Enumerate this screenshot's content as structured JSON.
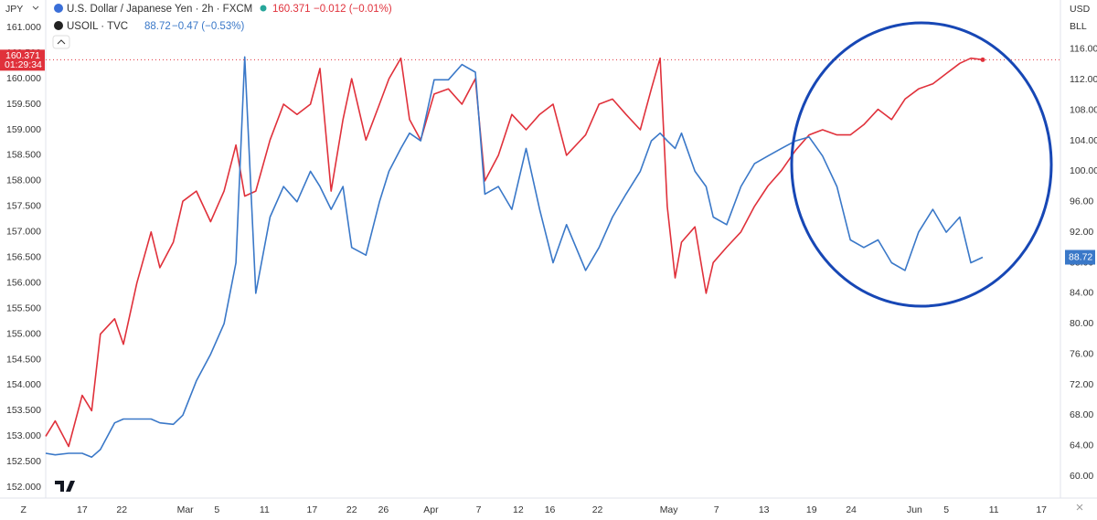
{
  "header": {
    "left_unit": "JPY",
    "right_unit_1": "USD",
    "right_unit_2": "BLL",
    "legend_1": {
      "name": "U.S. Dollar / Japanese Yen · 2h · FXCM",
      "price": "160.371",
      "change": "−0.012 (−0.01%)"
    },
    "legend_2": {
      "name": "USOIL · TVC",
      "price": "88.72",
      "change": "−0.47 (−0.53%)"
    },
    "price_box_1": {
      "price": "160.371",
      "countdown": "01:29:34"
    },
    "price_box_2": {
      "price": "88.72"
    }
  },
  "chart_data": {
    "type": "line",
    "grid": false,
    "x": [
      12.4,
      13.6,
      15.3,
      17.0,
      18.2,
      19.3,
      21.1,
      22.2,
      23.9,
      25.7,
      26.8,
      28.5,
      29.7,
      31.4,
      33.2,
      34.9,
      36.4,
      37.5,
      38.9,
      40.7,
      42.4,
      44.1,
      45.8,
      47.0,
      48.4,
      49.9,
      51.0,
      52.8,
      54.5,
      55.7,
      57.2,
      58.3,
      59.7,
      61.4,
      63.2,
      64.9,
      66.6,
      67.8,
      69.5,
      71.2,
      73.0,
      74.7,
      76.4,
      78.1,
      80.5,
      82.2,
      83.9,
      85.6,
      87.4,
      88.8,
      89.9,
      90.8,
      91.8,
      92.6,
      94.3,
      95.7,
      96.6,
      98.3,
      100.1,
      101.8,
      103.5,
      105.2,
      107.0,
      108.7,
      110.4,
      112.2,
      113.9,
      115.6,
      117.4,
      119.1,
      120.8,
      122.5,
      124.3,
      126.0,
      127.7,
      129.1,
      130.6
    ],
    "xlim": [
      12.4,
      140.4
    ],
    "xticks": [
      {
        "value": 9.6,
        "label": "Z"
      },
      {
        "value": 17,
        "label": "17"
      },
      {
        "value": 22,
        "label": "22"
      },
      {
        "value": 30,
        "label": "Mar"
      },
      {
        "value": 34,
        "label": "5"
      },
      {
        "value": 40,
        "label": "11"
      },
      {
        "value": 46,
        "label": "17"
      },
      {
        "value": 51,
        "label": "22"
      },
      {
        "value": 55,
        "label": "26"
      },
      {
        "value": 61,
        "label": "Apr"
      },
      {
        "value": 67,
        "label": "7"
      },
      {
        "value": 72,
        "label": "12"
      },
      {
        "value": 76,
        "label": "16"
      },
      {
        "value": 82,
        "label": "22"
      },
      {
        "value": 91,
        "label": "May"
      },
      {
        "value": 97,
        "label": "7"
      },
      {
        "value": 103,
        "label": "13"
      },
      {
        "value": 109,
        "label": "19"
      },
      {
        "value": 114,
        "label": "24"
      },
      {
        "value": 122,
        "label": "Jun"
      },
      {
        "value": 126,
        "label": "5"
      },
      {
        "value": 132,
        "label": "11"
      },
      {
        "value": 138,
        "label": "17"
      }
    ],
    "ylim": [
      151.79,
      161.54
    ],
    "yticks": [
      {
        "value": 152,
        "label": "152.000"
      },
      {
        "value": 152.5,
        "label": "152.500"
      },
      {
        "value": 153,
        "label": "153.000"
      },
      {
        "value": 153.5,
        "label": "153.500"
      },
      {
        "value": 154,
        "label": "154.000"
      },
      {
        "value": 154.5,
        "label": "154.500"
      },
      {
        "value": 155,
        "label": "155.000"
      },
      {
        "value": 155.5,
        "label": "155.500"
      },
      {
        "value": 156,
        "label": "156.000"
      },
      {
        "value": 156.5,
        "label": "156.500"
      },
      {
        "value": 157,
        "label": "157.000"
      },
      {
        "value": 157.5,
        "label": "157.500"
      },
      {
        "value": 158,
        "label": "158.000"
      },
      {
        "value": 158.5,
        "label": "158.500"
      },
      {
        "value": 159,
        "label": "159.000"
      },
      {
        "value": 159.5,
        "label": "159.500"
      },
      {
        "value": 160,
        "label": "160.000"
      },
      {
        "value": 160.5,
        "label": "160.500"
      },
      {
        "value": 161,
        "label": "161.000"
      }
    ],
    "y2lim": [
      57.13,
      122.47
    ],
    "y2ticks": [
      {
        "value": 60,
        "label": "60.00"
      },
      {
        "value": 64,
        "label": "64.00"
      },
      {
        "value": 68,
        "label": "68.00"
      },
      {
        "value": 72,
        "label": "72.00"
      },
      {
        "value": 76,
        "label": "76.00"
      },
      {
        "value": 80,
        "label": "80.00"
      },
      {
        "value": 84,
        "label": "84.00"
      },
      {
        "value": 88,
        "label": "88.00"
      },
      {
        "value": 92,
        "label": "92.00"
      },
      {
        "value": 96,
        "label": "96.00"
      },
      {
        "value": 100,
        "label": "100.00"
      },
      {
        "value": 104,
        "label": "104.00"
      },
      {
        "value": 108,
        "label": "108.00"
      },
      {
        "value": 112,
        "label": "112.00"
      },
      {
        "value": 116,
        "label": "116.00"
      }
    ],
    "series": [
      {
        "name": "U.S. Dollar / Japanese Yen",
        "color": "#e0313b",
        "axis": "y",
        "values": [
          153.0,
          153.3,
          152.8,
          153.8,
          153.5,
          155.0,
          155.3,
          154.8,
          156.0,
          157.0,
          156.3,
          156.8,
          157.6,
          157.8,
          157.2,
          157.8,
          158.7,
          157.7,
          157.8,
          158.8,
          159.5,
          159.3,
          159.5,
          160.2,
          157.8,
          159.2,
          160.0,
          158.8,
          159.5,
          160.0,
          160.4,
          159.2,
          158.8,
          159.7,
          159.8,
          159.5,
          160.0,
          158.0,
          158.5,
          159.3,
          159.0,
          159.3,
          159.5,
          158.5,
          158.9,
          159.5,
          159.6,
          159.3,
          159.0,
          159.8,
          160.4,
          157.5,
          156.1,
          156.8,
          157.1,
          155.8,
          156.4,
          156.7,
          157.0,
          157.5,
          157.9,
          158.2,
          158.6,
          158.9,
          159.0,
          158.9,
          158.9,
          159.1,
          159.4,
          159.2,
          159.6,
          159.8,
          159.9,
          160.1,
          160.3,
          160.4,
          160.371
        ]
      },
      {
        "name": "USOIL",
        "color": "#3a78c8",
        "axis": "y2",
        "values": [
          63.0,
          62.8,
          63.0,
          63.0,
          62.5,
          63.5,
          67.0,
          67.5,
          67.5,
          67.5,
          67.0,
          66.8,
          68.0,
          72.5,
          76.0,
          80.0,
          88.0,
          115.0,
          84.0,
          94.0,
          98.0,
          96.0,
          100.0,
          98.0,
          95.0,
          98.0,
          90.0,
          89.0,
          96.0,
          100.0,
          103.0,
          105.0,
          104.0,
          112.0,
          112.0,
          114.0,
          113.0,
          97.0,
          98.0,
          95.0,
          103.0,
          95.0,
          88.0,
          93.0,
          87.0,
          90.0,
          94.0,
          97.0,
          100.0,
          104.0,
          105.0,
          104.0,
          103.0,
          105.0,
          100.0,
          98.0,
          94.0,
          93.0,
          98.0,
          101.0,
          102.0,
          103.0,
          104.0,
          104.5,
          102.0,
          98.0,
          91.0,
          90.0,
          91.0,
          88.0,
          87.0,
          92.0,
          95.0,
          92.0,
          94.0,
          88.0,
          88.72
        ]
      }
    ]
  }
}
